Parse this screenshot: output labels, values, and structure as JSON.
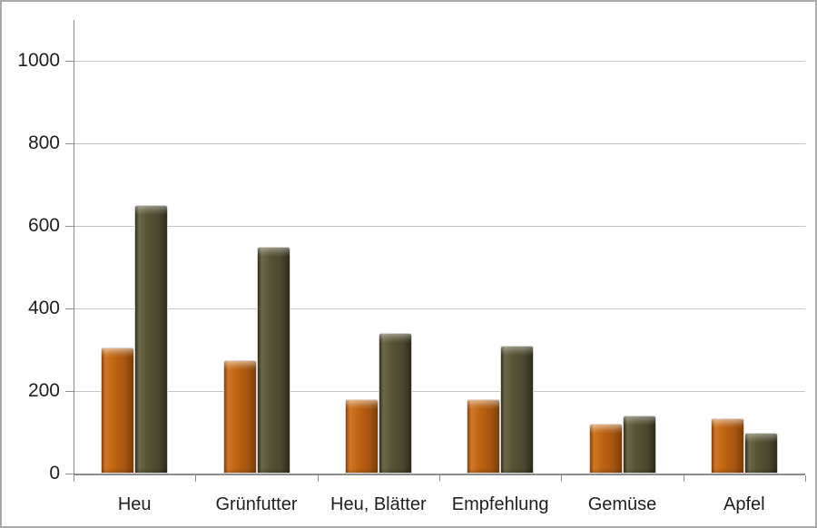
{
  "chart_data": {
    "type": "bar",
    "title": "",
    "categories": [
      "Heu",
      "Grünfutter",
      "Heu, Blätter",
      "Empfehlung",
      "Gemüse",
      "Apfel"
    ],
    "series": [
      {
        "name": "orange",
        "color": "#AC5910",
        "values": [
          305,
          275,
          180,
          180,
          120,
          135
        ]
      },
      {
        "name": "olive",
        "color": "#514D2F",
        "values": [
          650,
          550,
          340,
          310,
          140,
          100
        ]
      }
    ],
    "xlabel": "",
    "ylabel": "",
    "y_axis": {
      "ticks": [
        0,
        200,
        400,
        600,
        800,
        1000
      ],
      "min": 0,
      "max_display": 1100
    },
    "grid": true,
    "legend": "none"
  },
  "style": {
    "frame_border_color": "#A9A9A9",
    "background_color": "#FFFFFF",
    "grid_color": "#C6C6C6",
    "axis_color": "#8C8C8C",
    "label_color": "#1F1F1F"
  }
}
